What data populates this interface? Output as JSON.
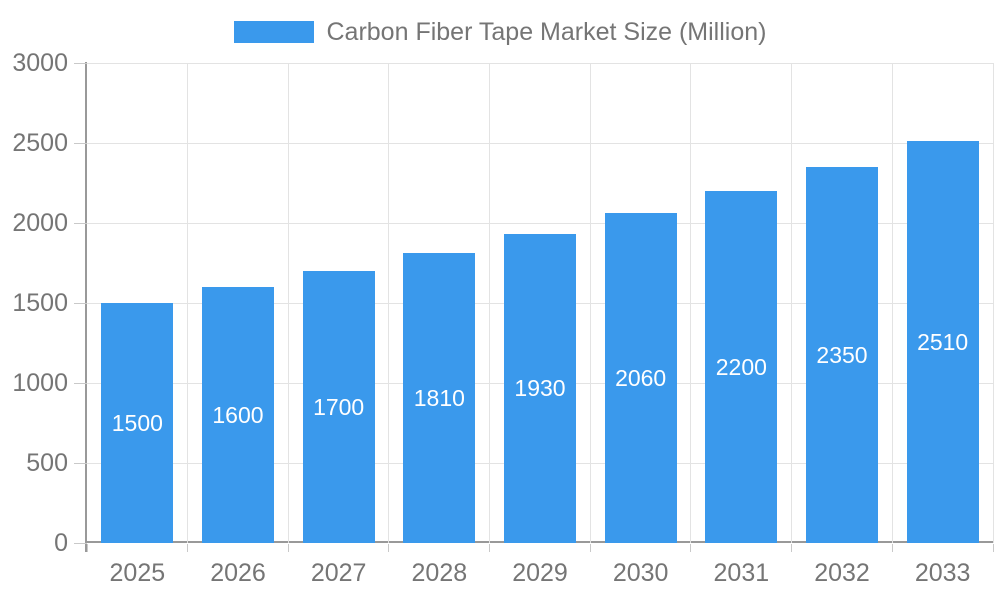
{
  "chart_data": {
    "type": "bar",
    "title": "Carbon Fiber Tape Market Size (Million)",
    "categories": [
      "2025",
      "2026",
      "2027",
      "2028",
      "2029",
      "2030",
      "2031",
      "2032",
      "2033"
    ],
    "values": [
      1500,
      1600,
      1700,
      1810,
      1930,
      2060,
      2200,
      2350,
      2510
    ],
    "value_labels": [
      "1500",
      "1600",
      "1700",
      "1810",
      "1930",
      "2060",
      "2200",
      "2350",
      "2510"
    ],
    "xlabel": "",
    "ylabel": "",
    "ylim": [
      0,
      3000
    ],
    "yticks": [
      0,
      500,
      1000,
      1500,
      2000,
      2500,
      3000
    ],
    "grid": true,
    "legend_position": "top",
    "colors": {
      "bar": "#3a99ec",
      "grid": "#e3e3e3",
      "axis": "#999999",
      "tick": "#c9c9c9",
      "tick_label": "#757575",
      "value_label": "#ffffff",
      "background": "#ffffff"
    }
  }
}
